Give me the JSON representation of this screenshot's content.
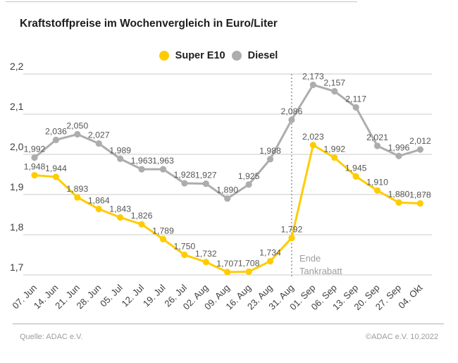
{
  "title": "Kraftstoffpreise im Wochenvergleich in Euro/Liter",
  "chart_data": {
    "type": "line",
    "title": "Kraftstoffpreise im Wochenvergleich in Euro/Liter",
    "categories": [
      "07. Jun",
      "14. Jun",
      "21. Jun",
      "28. Jun",
      "05. Jul",
      "12. Jul",
      "19. Jul",
      "26. Jul",
      "02. Aug",
      "09. Aug",
      "16. Aug",
      "23. Aug",
      "31. Aug",
      "01. Sep",
      "06. Sep",
      "13. Sep",
      "20. Sep",
      "27. Sep",
      "04. Okt"
    ],
    "series": [
      {
        "name": "Super E10",
        "color": "#FFCC00",
        "values": [
          1.948,
          1.944,
          1.893,
          1.864,
          1.843,
          1.826,
          1.789,
          1.75,
          1.732,
          1.707,
          1.708,
          1.734,
          1.792,
          2.023,
          1.992,
          1.945,
          1.91,
          1.88,
          1.878
        ]
      },
      {
        "name": "Diesel",
        "color": "#ADADAD",
        "values": [
          1.992,
          2.036,
          2.05,
          2.027,
          1.989,
          1.963,
          1.963,
          1.928,
          1.927,
          1.89,
          1.925,
          1.988,
          2.086,
          2.173,
          2.157,
          2.117,
          2.021,
          1.996,
          2.012
        ]
      }
    ],
    "ylim": [
      1.7,
      2.2
    ],
    "y_ticks": [
      2.2,
      2.1,
      2.0,
      1.9,
      1.8,
      1.7
    ],
    "grid": true,
    "legend_position": "top-center",
    "decimal_separator": ",",
    "annotation": {
      "category": "31. Aug",
      "lines": [
        "Ende",
        "Tankrabatt"
      ]
    }
  },
  "footer": {
    "source": "Quelle: ADAC e.V.",
    "copyright": "©ADAC e.V.  10.2022"
  },
  "colors": {
    "super_e10": "#FFCC00",
    "diesel": "#ADADAD",
    "gridline": "#cbcbcb",
    "data_label": "#565655",
    "annotation": "#9d9d9c",
    "title_text": "#1d1d1b"
  }
}
